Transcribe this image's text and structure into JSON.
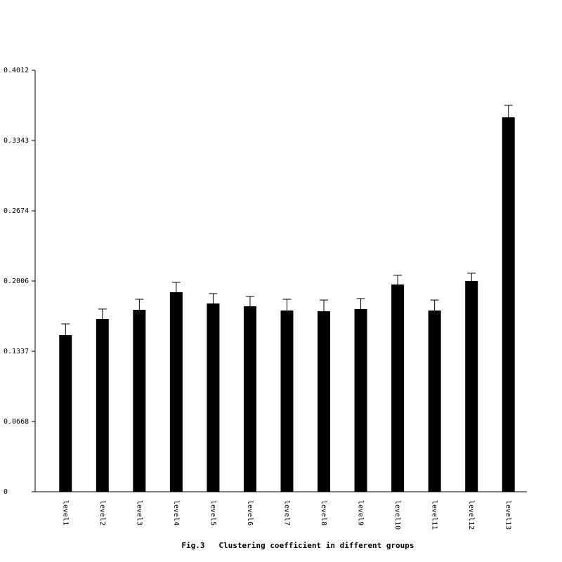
{
  "chart_data": {
    "type": "bar",
    "title": "Fig.3   Clustering coefficient in different groups",
    "categories": [
      "level1",
      "level2",
      "level3",
      "level4",
      "level5",
      "level6",
      "level7",
      "level8",
      "level9",
      "level10",
      "level11",
      "level12",
      "level13"
    ],
    "values": [
      0.1491,
      0.1645,
      0.1732,
      0.1899,
      0.1792,
      0.1765,
      0.1725,
      0.1718,
      0.1739,
      0.1973,
      0.1725,
      0.2006,
      0.3564
    ],
    "errors": [
      0.0107,
      0.0094,
      0.01,
      0.0094,
      0.0094,
      0.0094,
      0.0107,
      0.0107,
      0.01,
      0.0087,
      0.01,
      0.0074,
      0.0114
    ],
    "color": "#000000",
    "ylim": [
      0,
      0.4012
    ],
    "yticks": [
      0,
      0.0668,
      0.1337,
      0.2006,
      0.2674,
      0.3343,
      0.4012
    ],
    "grid": false
  }
}
